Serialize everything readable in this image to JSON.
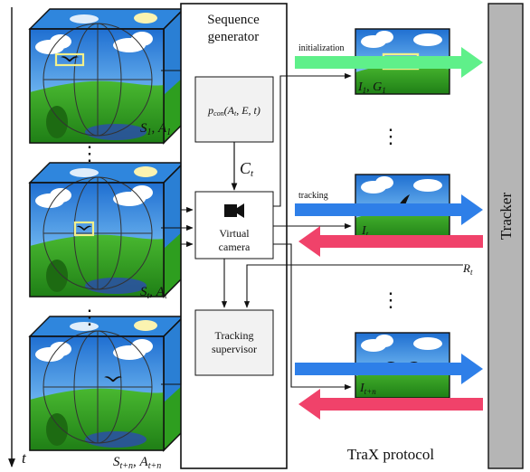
{
  "generator": {
    "title_line1": "Sequence",
    "title_line2": "generator",
    "pcon_label": "p_con(A_t, E, t)",
    "pcon_main": "p",
    "pcon_sub": "con",
    "pcon_args": "(A",
    "pcon_args_sub": "t",
    "pcon_args_rest": ", E, t)",
    "ct_main": "C",
    "ct_sub": "t",
    "camera_line1": "Virtual",
    "camera_line2": "camera",
    "supervisor_line1": "Tracking",
    "supervisor_line2": "supervisor"
  },
  "states": [
    {
      "main": "S",
      "sub": "1",
      "sep": ", ",
      "main2": "A",
      "sub2": "1"
    },
    {
      "main": "S",
      "sub": "t",
      "sep": ", ",
      "main2": "A",
      "sub2": "t"
    },
    {
      "main": "S",
      "sub": "t+n",
      "sep": ", ",
      "main2": "A",
      "sub2": "t+n"
    }
  ],
  "frames": [
    {
      "main": "I",
      "sub": "1",
      "sep": ", ",
      "main2": "G",
      "sub2": "1"
    },
    {
      "main": "I",
      "sub": "t"
    },
    {
      "main": "I",
      "sub": "t+n"
    }
  ],
  "arrows": {
    "initialization": "initialization",
    "tracking": "tracking",
    "response_main": "R",
    "response_sub": "t"
  },
  "time_axis": {
    "label": "t"
  },
  "protocol": {
    "label": "TraX protocol"
  },
  "tracker": {
    "label": "Tracker"
  },
  "dots": "⋮",
  "colors": {
    "sky": "#2f86dd",
    "grass": "#2e9e1f",
    "green_arrow": "#5ff08a",
    "blue_arrow": "#2e7fe8",
    "red_arrow": "#f0426a",
    "tracker_gray": "#b5b5b5",
    "box_gray": "#f2f2f2"
  }
}
